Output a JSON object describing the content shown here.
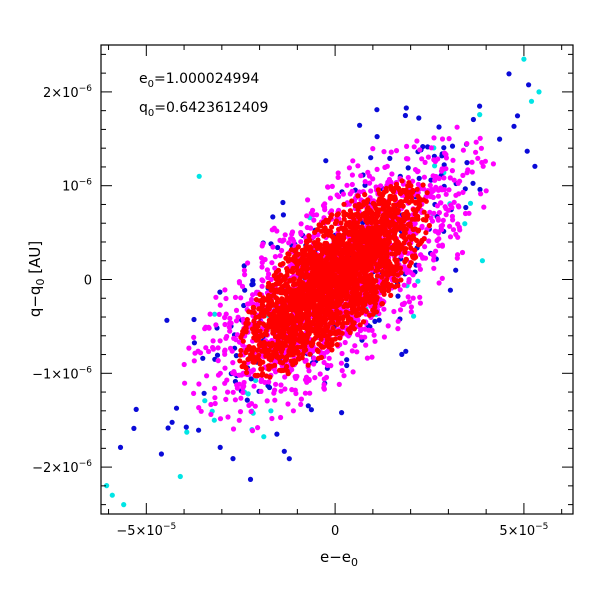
{
  "chart_data": {
    "type": "scatter",
    "title": "",
    "xlabel": {
      "base": "e−e",
      "sub": "0"
    },
    "ylabel": {
      "base": "q−q",
      "sub": "0",
      "unit": " [AU]"
    },
    "xlim": [
      -6.2e-05,
      6.3e-05
    ],
    "ylim": [
      -2.5e-06,
      2.5e-06
    ],
    "x_ticks": [
      {
        "value": -5e-05,
        "mantissa": "−5×10",
        "exp": "−5"
      },
      {
        "value": 0,
        "mantissa": "0",
        "exp": ""
      },
      {
        "value": 5e-05,
        "mantissa": "5×10",
        "exp": "−5"
      }
    ],
    "y_ticks": [
      {
        "value": 2e-06,
        "mantissa": "2×10",
        "exp": "−6"
      },
      {
        "value": 1e-06,
        "mantissa": "10",
        "exp": "−6"
      },
      {
        "value": 0,
        "mantissa": "0",
        "exp": ""
      },
      {
        "value": -1e-06,
        "mantissa": "−1×10",
        "exp": "−6"
      },
      {
        "value": -2e-06,
        "mantissa": "−2×10",
        "exp": "−6"
      }
    ],
    "annotations": [
      {
        "base": "e",
        "sub": "0",
        "text": "=1.000024994"
      },
      {
        "base": "q",
        "sub": "0",
        "text": "=0.6423612409"
      }
    ],
    "grid": false,
    "series": [
      {
        "color": "#00e5e5",
        "count": 40,
        "spread": 3.0,
        "sx": 2.4e-05,
        "sy": 9.5e-07,
        "rho": 0.72,
        "seed": 11,
        "points": [
          [
            -5.9e-05,
            -2.3e-06
          ],
          [
            -5.6e-05,
            -2.4e-06
          ],
          [
            -4.1e-05,
            -2.1e-06
          ],
          [
            -3.2e-05,
            -1.5e-06
          ],
          [
            -3.6e-05,
            1.1e-06
          ],
          [
            5.2e-05,
            1.9e-06
          ],
          [
            5.4e-05,
            2e-06
          ],
          [
            5e-05,
            2.35e-06
          ],
          [
            -1.7e-05,
            -1.4e-06
          ],
          [
            3.9e-05,
            2e-07
          ],
          [
            2.6e-05,
            7e-07
          ],
          [
            -2.2e-05,
            -1.6e-06
          ]
        ]
      },
      {
        "color": "#0a0ad8",
        "count": 260,
        "spread": 2.8,
        "sx": 2.1e-05,
        "sy": 8.4e-07,
        "rho": 0.72,
        "seed": 23
      },
      {
        "color": "#ff00ff",
        "count": 1500,
        "spread": 2.4,
        "sx": 1.75e-05,
        "sy": 7e-07,
        "rho": 0.72,
        "seed": 37
      },
      {
        "color": "#ff0000",
        "count": 2400,
        "spread": 2.0,
        "sx": 1.3e-05,
        "sy": 5.3e-07,
        "rho": 0.72,
        "seed": 53
      }
    ]
  }
}
